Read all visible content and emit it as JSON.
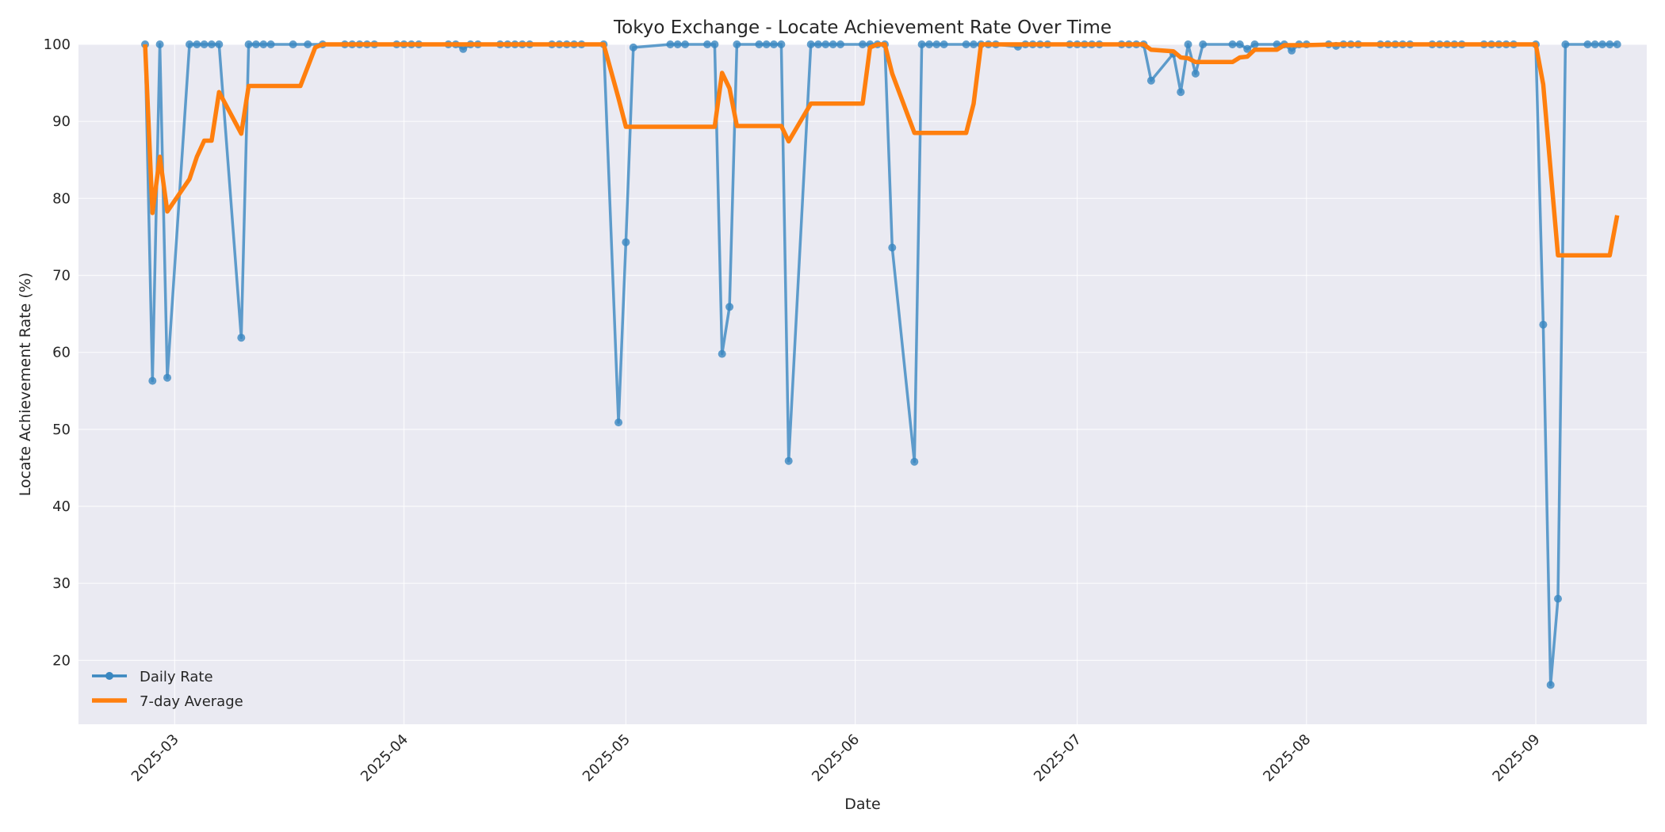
{
  "chart_data": {
    "type": "line",
    "title": "Tokyo Exchange - Locate Achievement Rate Over Time",
    "xlabel": "Date",
    "ylabel": "Locate Achievement Rate (%)",
    "ylim": [
      11.7,
      100
    ],
    "yticks": [
      20,
      30,
      40,
      50,
      60,
      70,
      80,
      90,
      100
    ],
    "xticks": [
      "2025-03",
      "2025-04",
      "2025-05",
      "2025-06",
      "2025-07",
      "2025-08",
      "2025-09"
    ],
    "xlim": [
      "2025-02-16",
      "2025-09-16"
    ],
    "grid": true,
    "legend_position": "lower left",
    "colors": {
      "daily": "#3a87c0",
      "avg": "#ff7f0e",
      "plot_bg": "#eaeaf2",
      "grid": "#ffffff"
    },
    "series": [
      {
        "name": "Daily Rate",
        "style": "line+marker",
        "points": [
          [
            "2025-02-25",
            100
          ],
          [
            "2025-02-26",
            56.3
          ],
          [
            "2025-02-27",
            100
          ],
          [
            "2025-02-28",
            56.7
          ],
          [
            "2025-03-03",
            100
          ],
          [
            "2025-03-04",
            100
          ],
          [
            "2025-03-05",
            100
          ],
          [
            "2025-03-06",
            100
          ],
          [
            "2025-03-07",
            100
          ],
          [
            "2025-03-10",
            61.9
          ],
          [
            "2025-03-11",
            100
          ],
          [
            "2025-03-12",
            100
          ],
          [
            "2025-03-13",
            100
          ],
          [
            "2025-03-14",
            100
          ],
          [
            "2025-03-17",
            100
          ],
          [
            "2025-03-19",
            100
          ],
          [
            "2025-03-21",
            100
          ],
          [
            "2025-03-24",
            100
          ],
          [
            "2025-03-25",
            100
          ],
          [
            "2025-03-26",
            100
          ],
          [
            "2025-03-27",
            100
          ],
          [
            "2025-03-28",
            100
          ],
          [
            "2025-03-31",
            100
          ],
          [
            "2025-04-01",
            100
          ],
          [
            "2025-04-02",
            100
          ],
          [
            "2025-04-03",
            100
          ],
          [
            "2025-04-07",
            100
          ],
          [
            "2025-04-08",
            100
          ],
          [
            "2025-04-09",
            99.4
          ],
          [
            "2025-04-10",
            100
          ],
          [
            "2025-04-11",
            100
          ],
          [
            "2025-04-14",
            100
          ],
          [
            "2025-04-15",
            100
          ],
          [
            "2025-04-16",
            100
          ],
          [
            "2025-04-17",
            100
          ],
          [
            "2025-04-18",
            100
          ],
          [
            "2025-04-21",
            100
          ],
          [
            "2025-04-22",
            100
          ],
          [
            "2025-04-23",
            100
          ],
          [
            "2025-04-24",
            100
          ],
          [
            "2025-04-25",
            100
          ],
          [
            "2025-04-28",
            100
          ],
          [
            "2025-04-30",
            50.9
          ],
          [
            "2025-05-01",
            74.3
          ],
          [
            "2025-05-02",
            99.6
          ],
          [
            "2025-05-07",
            100
          ],
          [
            "2025-05-08",
            100
          ],
          [
            "2025-05-09",
            100
          ],
          [
            "2025-05-12",
            100
          ],
          [
            "2025-05-13",
            100
          ],
          [
            "2025-05-14",
            59.8
          ],
          [
            "2025-05-15",
            65.9
          ],
          [
            "2025-05-16",
            100
          ],
          [
            "2025-05-19",
            100
          ],
          [
            "2025-05-20",
            100
          ],
          [
            "2025-05-21",
            100
          ],
          [
            "2025-05-22",
            100
          ],
          [
            "2025-05-23",
            45.9
          ],
          [
            "2025-05-26",
            100
          ],
          [
            "2025-05-27",
            100
          ],
          [
            "2025-05-28",
            100
          ],
          [
            "2025-05-29",
            100
          ],
          [
            "2025-05-30",
            100
          ],
          [
            "2025-06-02",
            100
          ],
          [
            "2025-06-03",
            100
          ],
          [
            "2025-06-04",
            100
          ],
          [
            "2025-06-05",
            100
          ],
          [
            "2025-06-06",
            73.6
          ],
          [
            "2025-06-09",
            45.8
          ],
          [
            "2025-06-10",
            100
          ],
          [
            "2025-06-11",
            100
          ],
          [
            "2025-06-12",
            100
          ],
          [
            "2025-06-13",
            100
          ],
          [
            "2025-06-16",
            100
          ],
          [
            "2025-06-17",
            100
          ],
          [
            "2025-06-18",
            100
          ],
          [
            "2025-06-19",
            100
          ],
          [
            "2025-06-20",
            100
          ],
          [
            "2025-06-23",
            99.7
          ],
          [
            "2025-06-24",
            100
          ],
          [
            "2025-06-25",
            100
          ],
          [
            "2025-06-26",
            100
          ],
          [
            "2025-06-27",
            100
          ],
          [
            "2025-06-30",
            100
          ],
          [
            "2025-07-01",
            100
          ],
          [
            "2025-07-02",
            100
          ],
          [
            "2025-07-03",
            100
          ],
          [
            "2025-07-04",
            100
          ],
          [
            "2025-07-07",
            100
          ],
          [
            "2025-07-08",
            100
          ],
          [
            "2025-07-09",
            100
          ],
          [
            "2025-07-10",
            100
          ],
          [
            "2025-07-11",
            95.3
          ],
          [
            "2025-07-14",
            98.8
          ],
          [
            "2025-07-15",
            93.8
          ],
          [
            "2025-07-16",
            100
          ],
          [
            "2025-07-17",
            96.2
          ],
          [
            "2025-07-18",
            100
          ],
          [
            "2025-07-22",
            100
          ],
          [
            "2025-07-23",
            100
          ],
          [
            "2025-07-24",
            99.4
          ],
          [
            "2025-07-25",
            100
          ],
          [
            "2025-07-28",
            100
          ],
          [
            "2025-07-29",
            100
          ],
          [
            "2025-07-30",
            99.2
          ],
          [
            "2025-07-31",
            100
          ],
          [
            "2025-08-01",
            100
          ],
          [
            "2025-08-04",
            100
          ],
          [
            "2025-08-05",
            99.8
          ],
          [
            "2025-08-06",
            100
          ],
          [
            "2025-08-07",
            100
          ],
          [
            "2025-08-08",
            100
          ],
          [
            "2025-08-11",
            100
          ],
          [
            "2025-08-12",
            100
          ],
          [
            "2025-08-13",
            100
          ],
          [
            "2025-08-14",
            100
          ],
          [
            "2025-08-15",
            100
          ],
          [
            "2025-08-18",
            100
          ],
          [
            "2025-08-19",
            100
          ],
          [
            "2025-08-20",
            100
          ],
          [
            "2025-08-21",
            100
          ],
          [
            "2025-08-22",
            100
          ],
          [
            "2025-08-25",
            100
          ],
          [
            "2025-08-26",
            100
          ],
          [
            "2025-08-27",
            100
          ],
          [
            "2025-08-28",
            100
          ],
          [
            "2025-08-29",
            100
          ],
          [
            "2025-09-01",
            100
          ],
          [
            "2025-09-02",
            63.6
          ],
          [
            "2025-09-03",
            16.8
          ],
          [
            "2025-09-04",
            28.0
          ],
          [
            "2025-09-05",
            100
          ],
          [
            "2025-09-08",
            100
          ],
          [
            "2025-09-09",
            100
          ],
          [
            "2025-09-10",
            100
          ],
          [
            "2025-09-11",
            100
          ],
          [
            "2025-09-12",
            100
          ]
        ]
      },
      {
        "name": "7-day Average",
        "style": "line",
        "points": [
          [
            "2025-02-25",
            100
          ],
          [
            "2025-02-26",
            78.1
          ],
          [
            "2025-02-27",
            85.4
          ],
          [
            "2025-02-28",
            78.3
          ],
          [
            "2025-03-03",
            82.5
          ],
          [
            "2025-03-04",
            85.4
          ],
          [
            "2025-03-05",
            87.5
          ],
          [
            "2025-03-06",
            87.5
          ],
          [
            "2025-03-07",
            93.8
          ],
          [
            "2025-03-10",
            88.4
          ],
          [
            "2025-03-11",
            94.6
          ],
          [
            "2025-03-14",
            94.6
          ],
          [
            "2025-03-18",
            94.6
          ],
          [
            "2025-03-20",
            99.6
          ],
          [
            "2025-03-21",
            100
          ],
          [
            "2025-04-28",
            100
          ],
          [
            "2025-04-30",
            93.0
          ],
          [
            "2025-05-01",
            89.3
          ],
          [
            "2025-05-02",
            89.3
          ],
          [
            "2025-05-13",
            89.3
          ],
          [
            "2025-05-14",
            96.3
          ],
          [
            "2025-05-15",
            94.3
          ],
          [
            "2025-05-16",
            89.4
          ],
          [
            "2025-05-22",
            89.4
          ],
          [
            "2025-05-23",
            87.4
          ],
          [
            "2025-05-26",
            92.3
          ],
          [
            "2025-06-02",
            92.3
          ],
          [
            "2025-06-03",
            99.6
          ],
          [
            "2025-06-04",
            100
          ],
          [
            "2025-06-05",
            100
          ],
          [
            "2025-06-06",
            96.2
          ],
          [
            "2025-06-09",
            88.5
          ],
          [
            "2025-06-16",
            88.5
          ],
          [
            "2025-06-17",
            92.3
          ],
          [
            "2025-06-18",
            100
          ],
          [
            "2025-07-10",
            100
          ],
          [
            "2025-07-11",
            99.3
          ],
          [
            "2025-07-14",
            99.1
          ],
          [
            "2025-07-15",
            98.3
          ],
          [
            "2025-07-16",
            98.2
          ],
          [
            "2025-07-17",
            97.7
          ],
          [
            "2025-07-22",
            97.7
          ],
          [
            "2025-07-23",
            98.3
          ],
          [
            "2025-07-24",
            98.4
          ],
          [
            "2025-07-25",
            99.3
          ],
          [
            "2025-07-28",
            99.3
          ],
          [
            "2025-07-29",
            99.9
          ],
          [
            "2025-08-01",
            99.9
          ],
          [
            "2025-08-05",
            100
          ],
          [
            "2025-09-01",
            100
          ],
          [
            "2025-09-02",
            94.8
          ],
          [
            "2025-09-04",
            72.6
          ],
          [
            "2025-09-05",
            72.6
          ],
          [
            "2025-09-11",
            72.6
          ],
          [
            "2025-09-12",
            77.8
          ]
        ]
      }
    ]
  }
}
